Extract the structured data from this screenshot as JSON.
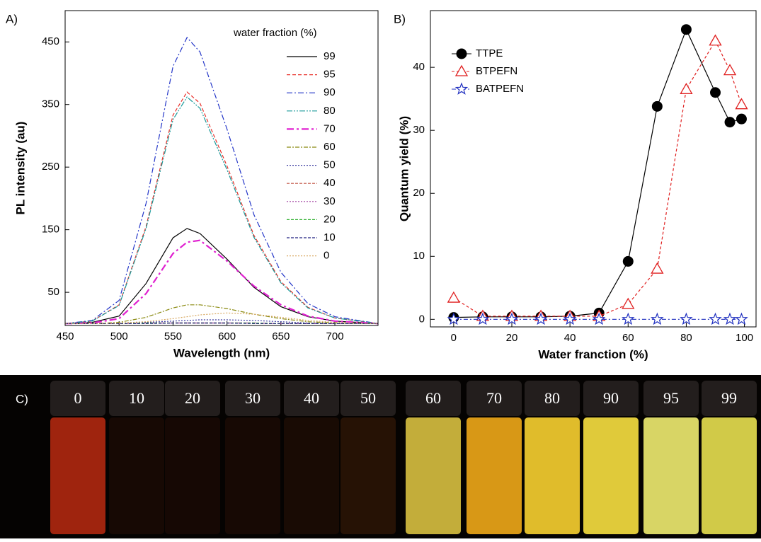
{
  "chart_data": [
    {
      "type": "line",
      "panel_label": "A)",
      "x_label": "Wavelength (nm)",
      "y_label": "PL intensity (au)",
      "legend_title": "water fraction (%)",
      "x": [
        450,
        475,
        500,
        525,
        550,
        563,
        575,
        600,
        625,
        650,
        675,
        700,
        740
      ],
      "xlim": [
        450,
        740
      ],
      "xticks": [
        450,
        500,
        550,
        600,
        650,
        700
      ],
      "ylim": [
        -3,
        500
      ],
      "yticks": [
        50,
        150,
        250,
        350,
        450
      ],
      "series": [
        {
          "name": "99",
          "color": "#000000",
          "dash": "none",
          "values": [
            0,
            2,
            12,
            64,
            137,
            152,
            144,
            103,
            58,
            27,
            11,
            4,
            0
          ]
        },
        {
          "name": "95",
          "color": "#e8302a",
          "dash": "5 3",
          "values": [
            0,
            4,
            30,
            155,
            333,
            370,
            352,
            252,
            141,
            67,
            26,
            9,
            0
          ]
        },
        {
          "name": "90",
          "color": "#2436c8",
          "dash": "8 3 2 3",
          "values": [
            0,
            5,
            37,
            192,
            411,
            457,
            434,
            311,
            174,
            82,
            32,
            11,
            0
          ]
        },
        {
          "name": "80",
          "color": "#1a9a9a",
          "dash": "8 2 2 2 2 2",
          "values": [
            0,
            4,
            29,
            152,
            326,
            362,
            344,
            246,
            138,
            65,
            25,
            9,
            0
          ]
        },
        {
          "name": "70",
          "color": "#e020d0",
          "dash": "10 4 3 4",
          "values": [
            0,
            1,
            8,
            48,
            112,
            130,
            133,
            100,
            60,
            30,
            12,
            4,
            0
          ]
        },
        {
          "name": "60",
          "color": "#8a8a10",
          "dash": "6 2 2 2",
          "values": [
            0,
            0,
            2,
            10,
            25,
            30,
            30,
            24,
            15,
            8,
            3,
            1,
            0
          ]
        },
        {
          "name": "50",
          "color": "#3a3aa0",
          "dash": "2 2",
          "values": [
            0,
            0,
            1,
            2,
            4,
            5,
            6,
            6,
            5,
            3,
            1,
            0,
            0
          ]
        },
        {
          "name": "40",
          "color": "#c05040",
          "dash": "4 2",
          "values": [
            0,
            0,
            0,
            1,
            1,
            1,
            1,
            1,
            1,
            0,
            0,
            0,
            0
          ]
        },
        {
          "name": "30",
          "color": "#a040a0",
          "dash": "2 2",
          "values": [
            0,
            0,
            0,
            1,
            1,
            1,
            1,
            1,
            1,
            0,
            0,
            0,
            0
          ]
        },
        {
          "name": "20",
          "color": "#30b030",
          "dash": "4 2",
          "values": [
            0,
            0,
            0,
            1,
            1,
            1,
            1,
            1,
            1,
            0,
            0,
            0,
            0
          ]
        },
        {
          "name": "10",
          "color": "#202080",
          "dash": "4 2",
          "values": [
            0,
            0,
            0,
            0,
            1,
            1,
            1,
            1,
            0,
            0,
            0,
            0,
            0
          ]
        },
        {
          "name": "0",
          "color": "#d8a860",
          "dash": "2 2",
          "values": [
            0,
            0,
            1,
            3,
            8,
            11,
            14,
            17,
            15,
            10,
            5,
            2,
            0
          ]
        }
      ]
    },
    {
      "type": "scatter",
      "panel_label": "B)",
      "x_label": "Water franction (%)",
      "y_label": "Quantum yield (%)",
      "x": [
        0,
        10,
        20,
        30,
        40,
        50,
        60,
        70,
        80,
        90,
        95,
        99
      ],
      "xlim": [
        -8,
        104
      ],
      "xticks": [
        0,
        20,
        40,
        60,
        80,
        100
      ],
      "ylim": [
        -1.2,
        49
      ],
      "yticks": [
        0,
        10,
        20,
        30,
        40
      ],
      "series": [
        {
          "name": "TTPE",
          "color": "#000000",
          "marker": "circle",
          "dash": "none",
          "values": [
            0.3,
            0.4,
            0.4,
            0.4,
            0.5,
            1,
            9.2,
            33.8,
            46,
            36,
            31.3,
            31.8
          ]
        },
        {
          "name": "BTPEFN",
          "color": "#e02020",
          "marker": "triangle",
          "dash": "4 3",
          "values": [
            3.4,
            0.5,
            0.5,
            0.5,
            0.5,
            0.5,
            2.4,
            8,
            36.5,
            44.2,
            39.5,
            34.1
          ]
        },
        {
          "name": "BATPEFN",
          "color": "#2030c0",
          "marker": "star",
          "dash": "6 3 2 3",
          "values": [
            0,
            0,
            0,
            0,
            0,
            0,
            0,
            0,
            0,
            0,
            0,
            0
          ]
        }
      ]
    }
  ],
  "photo": {
    "panel_label": "C)",
    "vials": [
      {
        "label": "0",
        "color": "#b02810"
      },
      {
        "label": "10",
        "color": "#1a0a04"
      },
      {
        "label": "20",
        "color": "#180904"
      },
      {
        "label": "30",
        "color": "#1a0a04"
      },
      {
        "label": "40",
        "color": "#1c0c04"
      },
      {
        "label": "50",
        "color": "#2a1406"
      },
      {
        "label": "60",
        "color": "#d8c040"
      },
      {
        "label": "70",
        "color": "#f0a818"
      },
      {
        "label": "80",
        "color": "#f8d030"
      },
      {
        "label": "90",
        "color": "#f8e040"
      },
      {
        "label": "95",
        "color": "#f0ec70"
      },
      {
        "label": "99",
        "color": "#e8e050"
      }
    ]
  }
}
